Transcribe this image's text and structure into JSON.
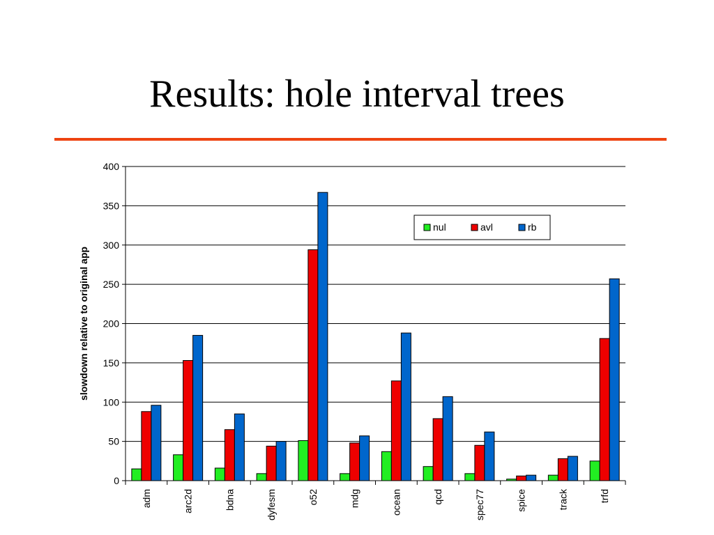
{
  "slide": {
    "title": "Results: hole interval trees",
    "rule_color": "#ee4411"
  },
  "chart_data": {
    "type": "bar",
    "title": "",
    "xlabel": "",
    "ylabel": "slowdown relative to original app",
    "ylim": [
      0,
      400
    ],
    "yticks": [
      0,
      50,
      100,
      150,
      200,
      250,
      300,
      350,
      400
    ],
    "grid": true,
    "legend_position": "top-right",
    "categories": [
      "adm",
      "arc2d",
      "bdna",
      "dyfesm",
      "o52",
      "mdg",
      "ocean",
      "qcd",
      "spec77",
      "spice",
      "track",
      "trfd"
    ],
    "series": [
      {
        "name": "nul",
        "color": "#22ee22",
        "values": [
          15,
          33,
          16,
          9,
          51,
          9,
          37,
          18,
          9,
          2,
          7,
          25
        ]
      },
      {
        "name": "avl",
        "color": "#ee0000",
        "values": [
          88,
          153,
          65,
          44,
          294,
          48,
          127,
          79,
          45,
          6,
          28,
          181
        ]
      },
      {
        "name": "rb",
        "color": "#0066cc",
        "values": [
          96,
          185,
          85,
          50,
          367,
          57,
          188,
          107,
          62,
          7,
          31,
          257
        ]
      }
    ]
  }
}
